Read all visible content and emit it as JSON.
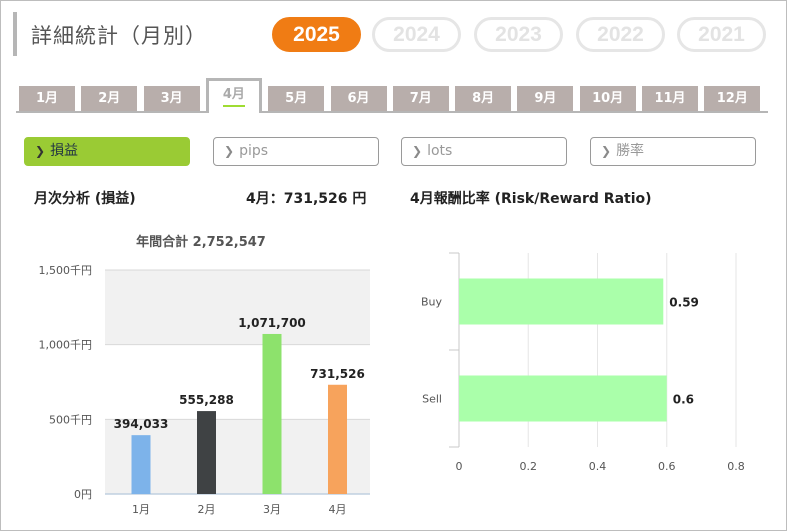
{
  "header": {
    "title": "詳細統計（月別）"
  },
  "years": [
    {
      "label": "2025",
      "active": true
    },
    {
      "label": "2024",
      "active": false
    },
    {
      "label": "2023",
      "active": false
    },
    {
      "label": "2022",
      "active": false
    },
    {
      "label": "2021",
      "active": false
    }
  ],
  "months": [
    "1月",
    "2月",
    "3月",
    "4月",
    "5月",
    "6月",
    "7月",
    "8月",
    "9月",
    "10月",
    "11月",
    "12月"
  ],
  "active_month_index": 3,
  "metrics": [
    {
      "label": "損益",
      "active": true
    },
    {
      "label": "pips",
      "active": false
    },
    {
      "label": "lots",
      "active": false
    },
    {
      "label": "勝率",
      "active": false
    }
  ],
  "monthly_analysis": {
    "title": "月次分析 (損益)",
    "current_label": "4月：731,526 円",
    "annual_total": "年間合計 2,752,547"
  },
  "risk_reward": {
    "title": "4月報酬比率 (Risk/Reward Ratio)"
  },
  "colors": {
    "accent_orange": "#f07c14",
    "active_green": "#9acb34"
  },
  "chart_data": [
    {
      "type": "bar",
      "categories": [
        "1月",
        "2月",
        "3月",
        "4月"
      ],
      "values": [
        394033,
        555288,
        1071700,
        731526
      ],
      "value_labels": [
        "394,033",
        "555,288",
        "1,071,700",
        "731,526"
      ],
      "bar_colors": [
        "#7db3ea",
        "#3f4244",
        "#8de26c",
        "#f7a35c"
      ],
      "ylim": [
        0,
        1500000
      ],
      "yticks": [
        0,
        500000,
        1000000,
        1500000
      ],
      "ytick_labels": [
        "0円",
        "500千円",
        "1,000千円",
        "1,500千円"
      ],
      "grid": true
    },
    {
      "type": "bar",
      "orientation": "horizontal",
      "categories": [
        "Buy",
        "Sell"
      ],
      "values": [
        0.59,
        0.6
      ],
      "value_labels": [
        "0.59",
        "0.6"
      ],
      "bar_color": "#aaffaa",
      "xlim": [
        0,
        0.8
      ],
      "xticks": [
        0,
        0.2,
        0.4,
        0.6,
        0.8
      ],
      "xtick_labels": [
        "0",
        "0.2",
        "0.4",
        "0.6",
        "0.8"
      ],
      "grid": true
    }
  ]
}
